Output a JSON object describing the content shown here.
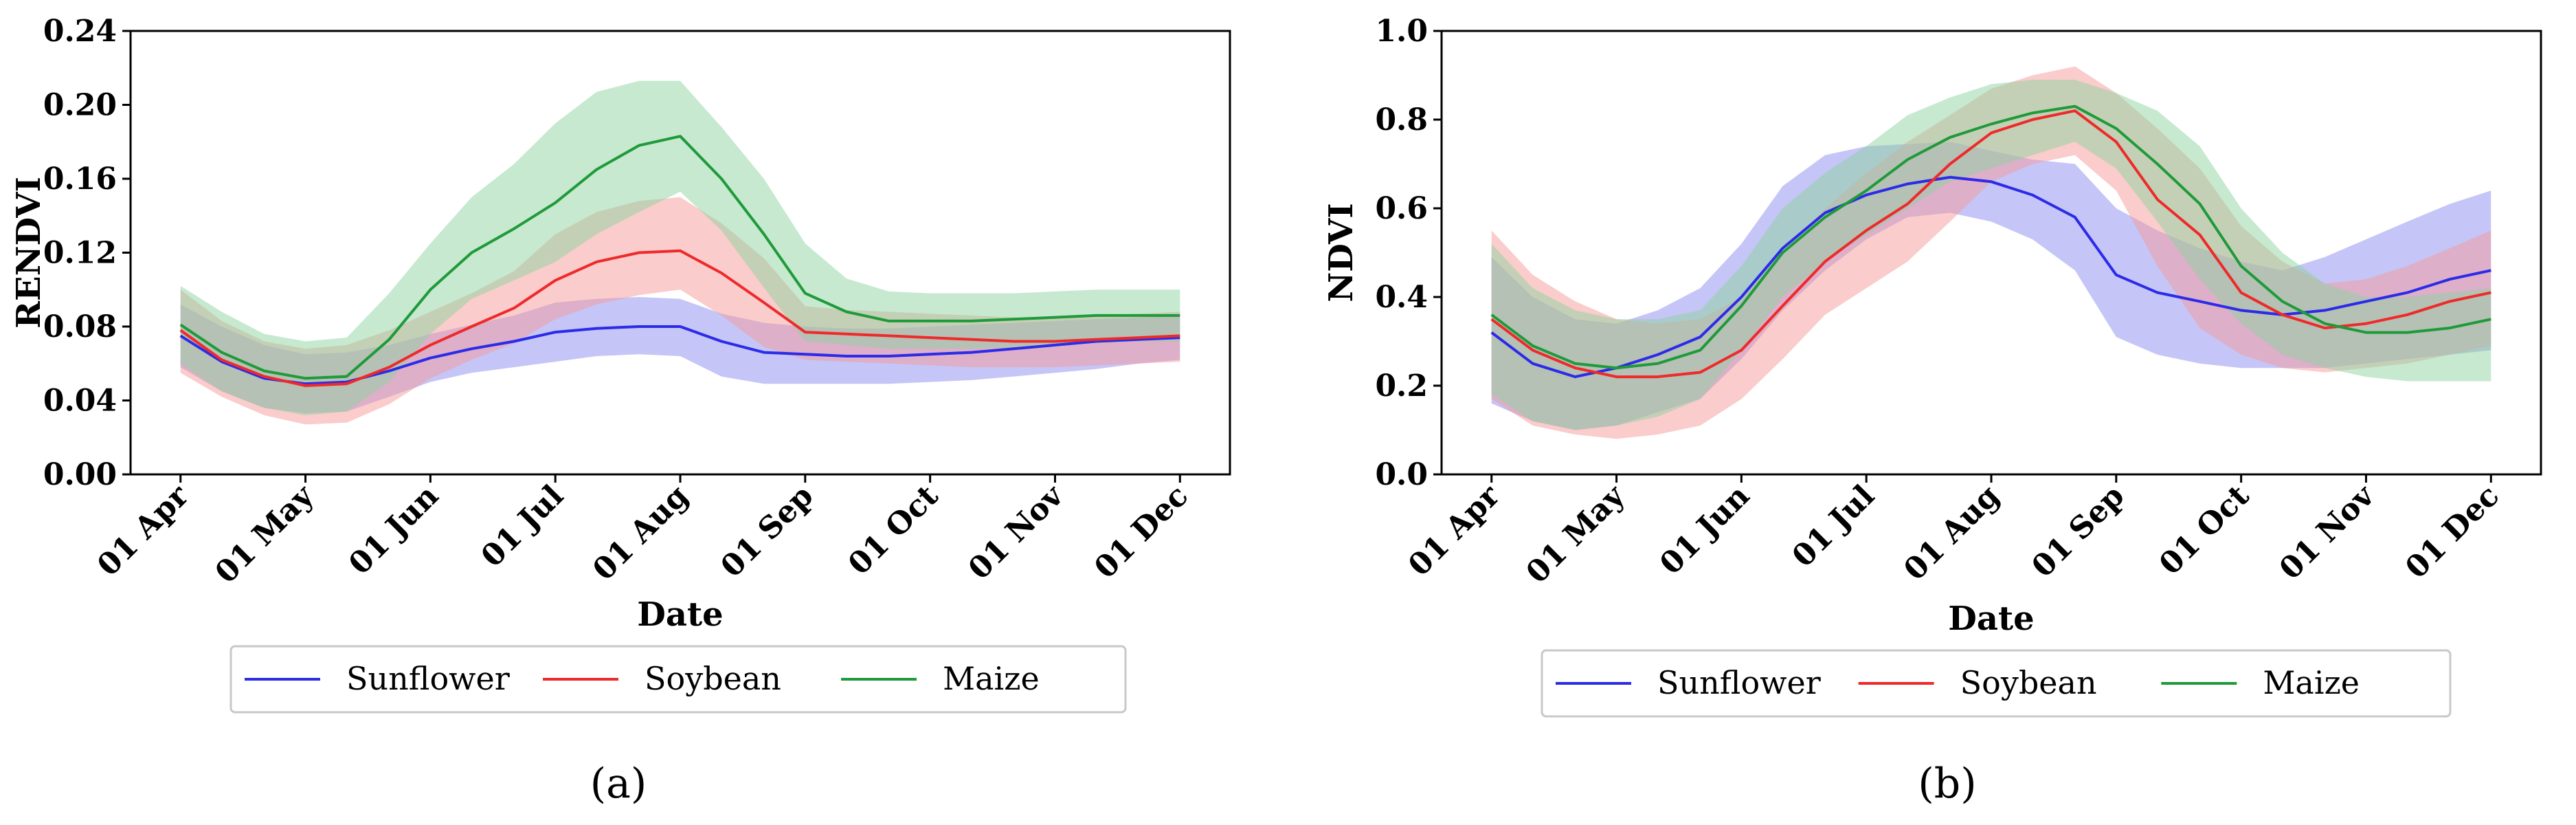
{
  "chart_data": [
    {
      "type": "line",
      "panel_label": "(a)",
      "xlabel": "Date",
      "ylabel": "RENDVI",
      "x_ticks": [
        "01 Apr",
        "01 May",
        "01 Jun",
        "01 Jul",
        "01 Aug",
        "01 Sep",
        "01 Oct",
        "01 Nov",
        "01 Dec"
      ],
      "y_ticks": [
        "0.00",
        "0.04",
        "0.08",
        "0.12",
        "0.16",
        "0.20",
        "0.24"
      ],
      "xlim": [
        -0.4,
        8.4
      ],
      "ylim": [
        0,
        0.24
      ],
      "x": [
        0,
        0.33,
        0.67,
        1,
        1.33,
        1.67,
        2,
        2.33,
        2.67,
        3,
        3.33,
        3.67,
        4,
        4.33,
        4.67,
        5,
        5.33,
        5.67,
        6,
        6.33,
        6.67,
        7,
        7.33,
        7.67,
        8
      ],
      "series": [
        {
          "name": "Sunflower",
          "color": "#2b2be8",
          "fill": "#8c8cf0",
          "mean": [
            0.075,
            0.061,
            0.052,
            0.049,
            0.05,
            0.056,
            0.063,
            0.068,
            0.072,
            0.077,
            0.079,
            0.08,
            0.08,
            0.072,
            0.066,
            0.065,
            0.064,
            0.064,
            0.065,
            0.066,
            0.068,
            0.07,
            0.072,
            0.073,
            0.074
          ],
          "upper": [
            0.092,
            0.08,
            0.07,
            0.065,
            0.066,
            0.07,
            0.076,
            0.081,
            0.086,
            0.093,
            0.095,
            0.096,
            0.095,
            0.087,
            0.082,
            0.08,
            0.079,
            0.079,
            0.08,
            0.081,
            0.082,
            0.083,
            0.084,
            0.085,
            0.086
          ],
          "lower": [
            0.058,
            0.045,
            0.036,
            0.033,
            0.034,
            0.042,
            0.05,
            0.055,
            0.058,
            0.061,
            0.064,
            0.065,
            0.064,
            0.053,
            0.049,
            0.049,
            0.049,
            0.049,
            0.05,
            0.051,
            0.053,
            0.055,
            0.057,
            0.06,
            0.062
          ]
        },
        {
          "name": "Soybean",
          "color": "#ee2a2a",
          "fill": "#f59a9a",
          "mean": [
            0.078,
            0.062,
            0.053,
            0.048,
            0.049,
            0.058,
            0.07,
            0.08,
            0.09,
            0.105,
            0.115,
            0.12,
            0.121,
            0.109,
            0.093,
            0.077,
            0.076,
            0.075,
            0.074,
            0.073,
            0.072,
            0.072,
            0.073,
            0.074,
            0.075
          ],
          "upper": [
            0.1,
            0.083,
            0.072,
            0.068,
            0.07,
            0.078,
            0.088,
            0.098,
            0.11,
            0.13,
            0.142,
            0.148,
            0.15,
            0.136,
            0.117,
            0.091,
            0.089,
            0.088,
            0.087,
            0.086,
            0.085,
            0.085,
            0.086,
            0.087,
            0.088
          ],
          "lower": [
            0.055,
            0.042,
            0.032,
            0.027,
            0.028,
            0.038,
            0.052,
            0.062,
            0.071,
            0.084,
            0.092,
            0.097,
            0.1,
            0.086,
            0.069,
            0.062,
            0.061,
            0.06,
            0.059,
            0.058,
            0.058,
            0.058,
            0.059,
            0.06,
            0.061
          ]
        },
        {
          "name": "Maize",
          "color": "#1f9a3a",
          "fill": "#8ed39f",
          "mean": [
            0.081,
            0.066,
            0.056,
            0.052,
            0.053,
            0.073,
            0.1,
            0.12,
            0.133,
            0.147,
            0.165,
            0.178,
            0.183,
            0.16,
            0.13,
            0.098,
            0.088,
            0.083,
            0.083,
            0.083,
            0.084,
            0.085,
            0.086,
            0.086,
            0.086
          ],
          "upper": [
            0.102,
            0.088,
            0.076,
            0.072,
            0.074,
            0.098,
            0.125,
            0.15,
            0.168,
            0.19,
            0.207,
            0.213,
            0.213,
            0.188,
            0.16,
            0.125,
            0.106,
            0.099,
            0.098,
            0.098,
            0.098,
            0.099,
            0.1,
            0.1,
            0.1
          ],
          "lower": [
            0.06,
            0.045,
            0.036,
            0.032,
            0.034,
            0.05,
            0.076,
            0.095,
            0.105,
            0.115,
            0.13,
            0.142,
            0.153,
            0.132,
            0.101,
            0.072,
            0.07,
            0.068,
            0.068,
            0.068,
            0.069,
            0.07,
            0.071,
            0.072,
            0.072
          ]
        }
      ]
    },
    {
      "type": "line",
      "panel_label": "(b)",
      "xlabel": "Date",
      "ylabel": "NDVI",
      "x_ticks": [
        "01 Apr",
        "01 May",
        "01 Jun",
        "01 Jul",
        "01 Aug",
        "01 Sep",
        "01 Oct",
        "01 Nov",
        "01 Dec"
      ],
      "y_ticks": [
        "0.0",
        "0.2",
        "0.4",
        "0.6",
        "0.8",
        "1.0"
      ],
      "xlim": [
        -0.4,
        8.4
      ],
      "ylim": [
        0,
        1.0
      ],
      "x": [
        0,
        0.33,
        0.67,
        1,
        1.33,
        1.67,
        2,
        2.33,
        2.67,
        3,
        3.33,
        3.67,
        4,
        4.33,
        4.67,
        5,
        5.33,
        5.67,
        6,
        6.33,
        6.67,
        7,
        7.33,
        7.67,
        8
      ],
      "series": [
        {
          "name": "Sunflower",
          "color": "#2b2be8",
          "fill": "#8c8cf0",
          "mean": [
            0.32,
            0.25,
            0.22,
            0.24,
            0.27,
            0.31,
            0.4,
            0.51,
            0.59,
            0.63,
            0.655,
            0.67,
            0.66,
            0.63,
            0.58,
            0.45,
            0.41,
            0.39,
            0.37,
            0.36,
            0.37,
            0.39,
            0.41,
            0.44,
            0.46
          ],
          "upper": [
            0.49,
            0.4,
            0.35,
            0.34,
            0.37,
            0.42,
            0.52,
            0.65,
            0.72,
            0.74,
            0.745,
            0.75,
            0.73,
            0.71,
            0.7,
            0.6,
            0.55,
            0.51,
            0.48,
            0.46,
            0.49,
            0.53,
            0.57,
            0.61,
            0.64
          ],
          "lower": [
            0.16,
            0.12,
            0.1,
            0.11,
            0.14,
            0.17,
            0.26,
            0.37,
            0.46,
            0.53,
            0.58,
            0.59,
            0.57,
            0.53,
            0.46,
            0.31,
            0.27,
            0.25,
            0.24,
            0.24,
            0.24,
            0.25,
            0.26,
            0.27,
            0.28
          ]
        },
        {
          "name": "Soybean",
          "color": "#ee2a2a",
          "fill": "#f59a9a",
          "mean": [
            0.35,
            0.28,
            0.24,
            0.22,
            0.22,
            0.23,
            0.28,
            0.38,
            0.48,
            0.55,
            0.61,
            0.7,
            0.77,
            0.8,
            0.82,
            0.75,
            0.62,
            0.54,
            0.41,
            0.36,
            0.33,
            0.34,
            0.36,
            0.39,
            0.41
          ],
          "upper": [
            0.55,
            0.45,
            0.39,
            0.35,
            0.34,
            0.35,
            0.4,
            0.5,
            0.6,
            0.68,
            0.75,
            0.81,
            0.87,
            0.9,
            0.92,
            0.86,
            0.78,
            0.69,
            0.56,
            0.48,
            0.43,
            0.44,
            0.47,
            0.51,
            0.55
          ],
          "lower": [
            0.17,
            0.11,
            0.09,
            0.08,
            0.09,
            0.11,
            0.17,
            0.26,
            0.36,
            0.42,
            0.48,
            0.57,
            0.66,
            0.7,
            0.72,
            0.64,
            0.47,
            0.33,
            0.27,
            0.24,
            0.23,
            0.24,
            0.25,
            0.27,
            0.29
          ]
        },
        {
          "name": "Maize",
          "color": "#1f9a3a",
          "fill": "#8ed39f",
          "mean": [
            0.36,
            0.29,
            0.25,
            0.24,
            0.25,
            0.28,
            0.38,
            0.5,
            0.58,
            0.64,
            0.71,
            0.76,
            0.79,
            0.815,
            0.83,
            0.78,
            0.7,
            0.61,
            0.47,
            0.39,
            0.34,
            0.32,
            0.32,
            0.33,
            0.35
          ],
          "upper": [
            0.52,
            0.42,
            0.37,
            0.35,
            0.35,
            0.37,
            0.47,
            0.6,
            0.68,
            0.74,
            0.81,
            0.85,
            0.88,
            0.89,
            0.89,
            0.86,
            0.82,
            0.74,
            0.6,
            0.5,
            0.43,
            0.4,
            0.4,
            0.41,
            0.42
          ],
          "lower": [
            0.18,
            0.12,
            0.1,
            0.11,
            0.13,
            0.17,
            0.28,
            0.4,
            0.48,
            0.54,
            0.6,
            0.66,
            0.69,
            0.72,
            0.75,
            0.69,
            0.57,
            0.44,
            0.34,
            0.27,
            0.24,
            0.22,
            0.21,
            0.21,
            0.21
          ]
        }
      ]
    }
  ]
}
